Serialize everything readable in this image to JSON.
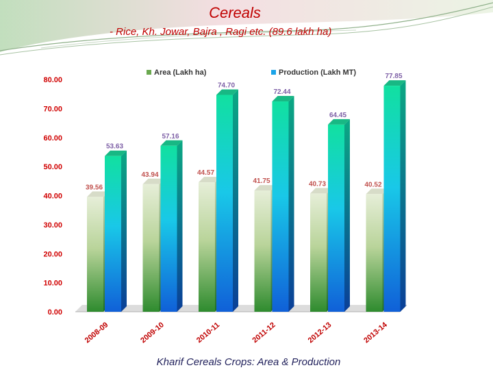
{
  "slide": {
    "title": "Cereals",
    "subtitle": "- Rice, Kh. Jowar, Bajra , Ragi etc. (89.6 lakh ha)",
    "caption": "Kharif Cereals Crops: Area & Production"
  },
  "colors": {
    "title": "#c00000",
    "area_top": "#e6eed8",
    "area_bottom": "#2e8b2e",
    "production_top": "#11e0a0",
    "production_bottom": "#1060d8",
    "area_label": "#c0504d",
    "production_label": "#7d5fa6"
  },
  "chart_data": {
    "type": "bar",
    "categories": [
      "2008-09",
      "2009-10",
      "2010-11",
      "2011-12",
      "2012-13",
      "2013-14"
    ],
    "series": [
      {
        "name": "Area (Lakh ha)",
        "values": [
          39.56,
          43.94,
          44.57,
          41.75,
          40.73,
          40.52
        ]
      },
      {
        "name": "Production (Lakh MT)",
        "values": [
          53.63,
          57.16,
          74.7,
          72.44,
          64.45,
          77.85
        ]
      }
    ],
    "ylim": [
      0,
      80
    ],
    "yticks": [
      "0.00",
      "10.00",
      "20.00",
      "30.00",
      "40.00",
      "50.00",
      "60.00",
      "70.00",
      "80.00"
    ],
    "value_labels": {
      "area": [
        "39.56",
        "43.94",
        "44.57",
        "41.75",
        "40.73",
        "40.52"
      ],
      "production": [
        "53.63",
        "57.16",
        "74.70",
        "72.44",
        "64.45",
        "77.85"
      ]
    },
    "legend": [
      "Area (Lakh ha)",
      "Production (Lakh MT)"
    ],
    "legend_position": "top",
    "title": "",
    "xlabel": "",
    "ylabel": ""
  }
}
